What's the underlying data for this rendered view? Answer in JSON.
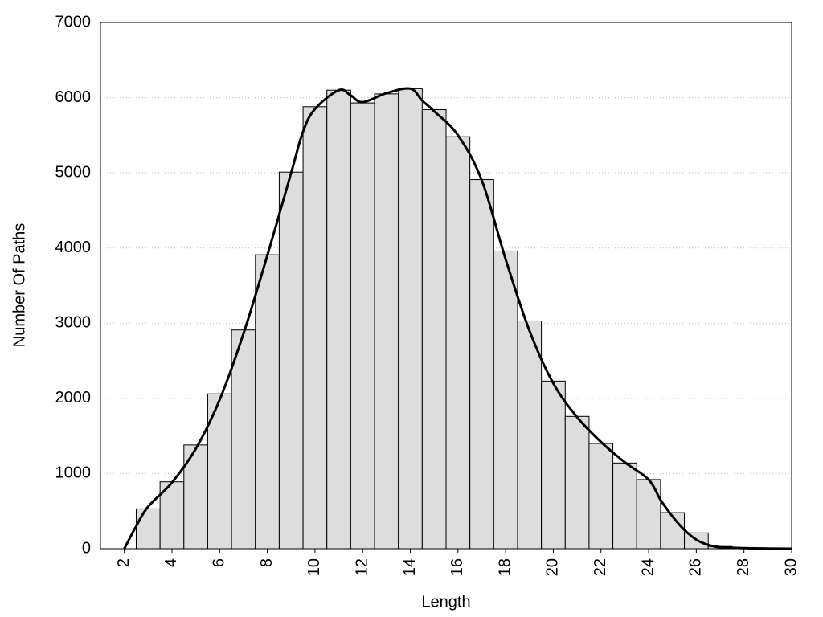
{
  "chart_data": {
    "type": "histogram",
    "xlabel": "Length",
    "ylabel": "Number Of Paths",
    "bins": [
      2.5,
      3.5,
      4.5,
      5.5,
      6.5,
      7.5,
      8.5,
      9.5,
      10.5,
      11.5,
      12.5,
      13.5,
      14.5,
      15.5,
      16.5,
      17.5,
      18.5,
      19.5,
      20.5,
      21.5,
      22.5,
      23.5,
      24.5,
      25.5,
      26.5,
      27.5,
      28.5,
      29.5
    ],
    "values": [
      530,
      890,
      1380,
      2060,
      2910,
      3910,
      5010,
      5880,
      6100,
      5930,
      6050,
      6120,
      5840,
      5480,
      4910,
      3960,
      3030,
      2230,
      1760,
      1400,
      1140,
      920,
      480,
      210,
      30,
      10,
      10
    ],
    "color": "#dddddd",
    "density_line": {
      "color": "#000000",
      "x": [
        2,
        2.5,
        3,
        4,
        5,
        6,
        7,
        8,
        9,
        9.5,
        10,
        11,
        11.5,
        12,
        13,
        14,
        14.5,
        15,
        16,
        17,
        18,
        19,
        20,
        21,
        22,
        23,
        24,
        24.5,
        25,
        25.5,
        26,
        26.5,
        27,
        28,
        29,
        30
      ],
      "values": [
        0,
        300,
        560,
        880,
        1330,
        1980,
        2860,
        3900,
        5000,
        5550,
        5850,
        6100,
        6030,
        5940,
        6060,
        6120,
        5960,
        5820,
        5500,
        4900,
        3850,
        2900,
        2200,
        1750,
        1420,
        1150,
        920,
        650,
        430,
        250,
        120,
        50,
        20,
        8,
        3,
        0
      ]
    },
    "xlim": [
      1,
      30
    ],
    "ylim": [
      0,
      7000
    ],
    "xticks": [
      2,
      4,
      6,
      8,
      10,
      12,
      14,
      16,
      18,
      20,
      22,
      24,
      26,
      28,
      30
    ],
    "yticks": [
      0,
      1000,
      2000,
      3000,
      4000,
      5000,
      6000,
      7000
    ],
    "grid": true
  }
}
